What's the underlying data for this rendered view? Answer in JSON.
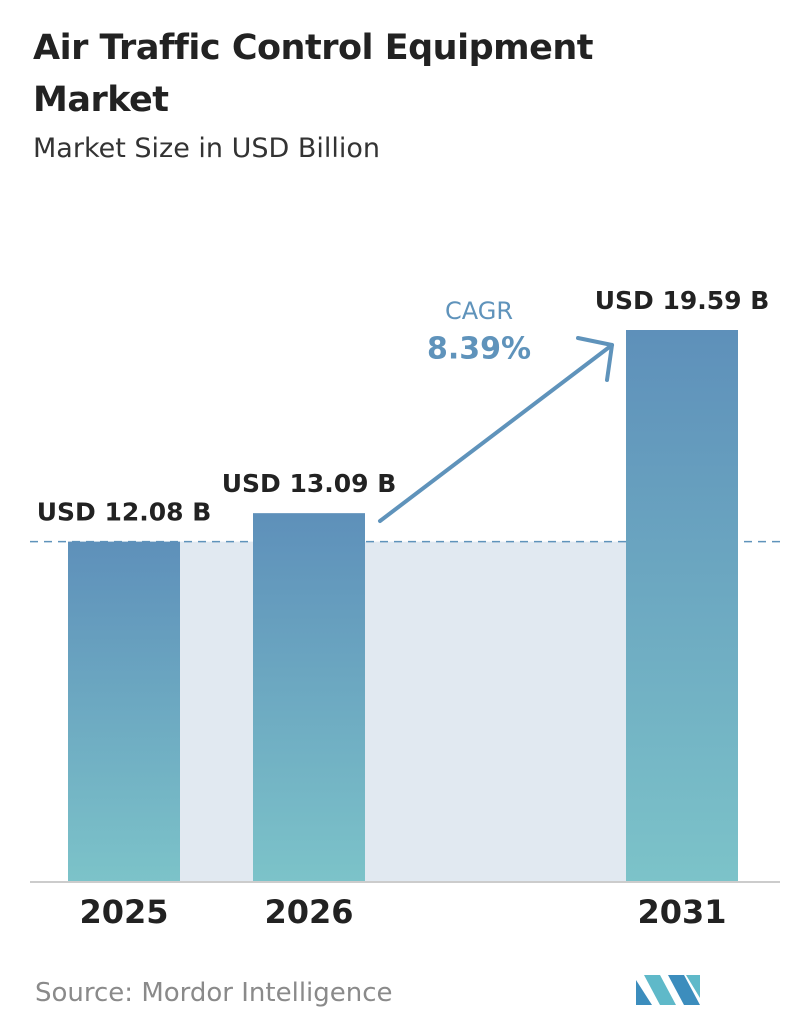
{
  "chart_data": {
    "type": "bar",
    "title": "Air Traffic Control Equipment Market",
    "subtitle": "Market Size in USD Billion",
    "categories": [
      "2025",
      "2026",
      "2031"
    ],
    "values": [
      12.08,
      13.09,
      19.59
    ],
    "value_labels": [
      "USD 12.08 B",
      "USD 13.09 B",
      "USD 19.59 B"
    ],
    "color": "#5f93bb",
    "annotation": {
      "label": "CAGR",
      "value": "8.39%"
    },
    "source": "Source: Mordor Intelligence"
  }
}
